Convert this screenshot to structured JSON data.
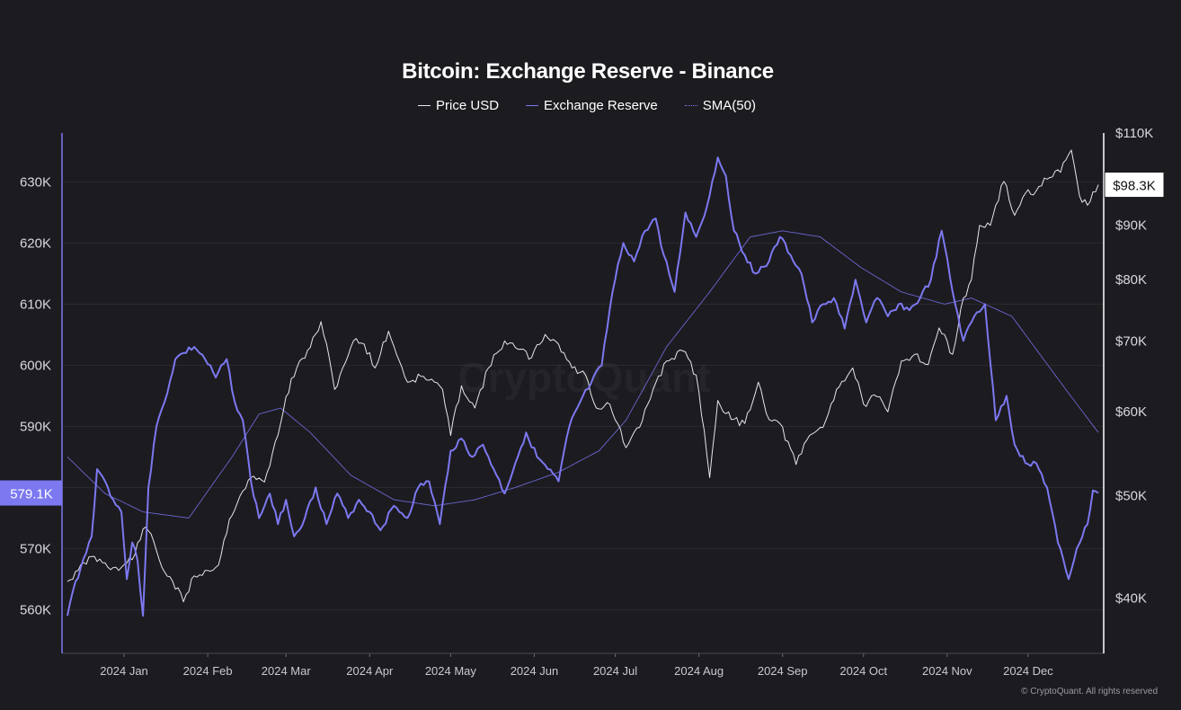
{
  "chart_data": {
    "type": "line",
    "title": "Bitcoin: Exchange Reserve - Binance",
    "watermark": "CryptoQuant",
    "credit": "© CryptoQuant. All rights reserved",
    "x_ticks": [
      "2024 Jan",
      "2024 Feb",
      "2024 Mar",
      "2024 Apr",
      "2024 May",
      "2024 Jun",
      "2024 Jul",
      "2024 Aug",
      "2024 Sep",
      "2024 Oct",
      "2024 Nov",
      "2024 Dec"
    ],
    "x_range": [
      "2023-12-11",
      "2024-12-27"
    ],
    "y_left": {
      "ticks": [
        "560K",
        "570K",
        "580K",
        "590K",
        "600K",
        "610K",
        "620K",
        "630K"
      ],
      "values": [
        560000,
        570000,
        580000,
        590000,
        600000,
        610000,
        620000,
        630000
      ],
      "range": [
        558000,
        638000
      ]
    },
    "y_right": {
      "scale": "log",
      "ticks": [
        "$40K",
        "$50K",
        "$60K",
        "$70K",
        "$80K",
        "$90K",
        "$100K",
        "$110K"
      ],
      "values": [
        40000,
        50000,
        60000,
        70000,
        80000,
        90000,
        100000,
        110000
      ],
      "range": [
        38000,
        110000
      ]
    },
    "current_labels": {
      "reserve": "579.1K",
      "price": "$98.3K"
    },
    "grid": true,
    "legend_position": "top-center",
    "series": [
      {
        "name": "Price USD",
        "axis": "right",
        "color": "#e6e6ea",
        "points": [
          [
            "2023-12-11",
            41500
          ],
          [
            "2023-12-15",
            42500
          ],
          [
            "2023-12-20",
            43800
          ],
          [
            "2023-12-25",
            43200
          ],
          [
            "2023-12-30",
            42500
          ],
          [
            "2024-01-05",
            44000
          ],
          [
            "2024-01-08",
            46500
          ],
          [
            "2024-01-11",
            46000
          ],
          [
            "2024-01-15",
            42800
          ],
          [
            "2024-01-19",
            41500
          ],
          [
            "2024-01-23",
            39700
          ],
          [
            "2024-01-27",
            42000
          ],
          [
            "2024-02-01",
            42500
          ],
          [
            "2024-02-05",
            43000
          ],
          [
            "2024-02-09",
            47500
          ],
          [
            "2024-02-13",
            50000
          ],
          [
            "2024-02-17",
            52000
          ],
          [
            "2024-02-22",
            51500
          ],
          [
            "2024-02-27",
            57000
          ],
          [
            "2024-03-01",
            62000
          ],
          [
            "2024-03-05",
            66000
          ],
          [
            "2024-03-10",
            69000
          ],
          [
            "2024-03-14",
            73000
          ],
          [
            "2024-03-19",
            63000
          ],
          [
            "2024-03-22",
            66000
          ],
          [
            "2024-03-26",
            70000
          ],
          [
            "2024-03-30",
            69500
          ],
          [
            "2024-04-03",
            66000
          ],
          [
            "2024-04-08",
            71500
          ],
          [
            "2024-04-12",
            67000
          ],
          [
            "2024-04-15",
            64000
          ],
          [
            "2024-04-20",
            64800
          ],
          [
            "2024-04-25",
            64000
          ],
          [
            "2024-04-28",
            63000
          ],
          [
            "2024-05-01",
            57000
          ],
          [
            "2024-05-05",
            63500
          ],
          [
            "2024-05-10",
            60500
          ],
          [
            "2024-05-15",
            66000
          ],
          [
            "2024-05-21",
            70000
          ],
          [
            "2024-05-25",
            69000
          ],
          [
            "2024-05-31",
            67500
          ],
          [
            "2024-06-05",
            71000
          ],
          [
            "2024-06-10",
            69500
          ],
          [
            "2024-06-15",
            66000
          ],
          [
            "2024-06-20",
            65000
          ],
          [
            "2024-06-24",
            60500
          ],
          [
            "2024-06-29",
            61000
          ],
          [
            "2024-07-05",
            55500
          ],
          [
            "2024-07-10",
            58000
          ],
          [
            "2024-07-15",
            63000
          ],
          [
            "2024-07-20",
            67000
          ],
          [
            "2024-07-26",
            68500
          ],
          [
            "2024-07-31",
            65000
          ],
          [
            "2024-08-05",
            52000
          ],
          [
            "2024-08-08",
            61500
          ],
          [
            "2024-08-13",
            59000
          ],
          [
            "2024-08-18",
            58500
          ],
          [
            "2024-08-23",
            64000
          ],
          [
            "2024-08-27",
            59000
          ],
          [
            "2024-08-31",
            58500
          ],
          [
            "2024-09-06",
            53500
          ],
          [
            "2024-09-11",
            57000
          ],
          [
            "2024-09-16",
            58000
          ],
          [
            "2024-09-21",
            63000
          ],
          [
            "2024-09-27",
            66000
          ],
          [
            "2024-10-01",
            61000
          ],
          [
            "2024-10-06",
            62000
          ],
          [
            "2024-10-10",
            60000
          ],
          [
            "2024-10-15",
            67000
          ],
          [
            "2024-10-20",
            68000
          ],
          [
            "2024-10-25",
            66500
          ],
          [
            "2024-10-29",
            72000
          ],
          [
            "2024-11-03",
            68000
          ],
          [
            "2024-11-06",
            75000
          ],
          [
            "2024-11-10",
            80000
          ],
          [
            "2024-11-13",
            90000
          ],
          [
            "2024-11-17",
            90000
          ],
          [
            "2024-11-22",
            99000
          ],
          [
            "2024-11-26",
            92000
          ],
          [
            "2024-11-30",
            96500
          ],
          [
            "2024-12-04",
            97000
          ],
          [
            "2024-12-08",
            99500
          ],
          [
            "2024-12-13",
            101000
          ],
          [
            "2024-12-17",
            106000
          ],
          [
            "2024-12-20",
            96000
          ],
          [
            "2024-12-23",
            94000
          ],
          [
            "2024-12-27",
            98300
          ]
        ]
      },
      {
        "name": "Exchange Reserve",
        "axis": "left",
        "color": "#7c78f0",
        "points": [
          [
            "2023-12-11",
            559000
          ],
          [
            "2023-12-13",
            563000
          ],
          [
            "2023-12-16",
            567000
          ],
          [
            "2023-12-20",
            572000
          ],
          [
            "2023-12-22",
            583000
          ],
          [
            "2023-12-25",
            581000
          ],
          [
            "2023-12-28",
            578000
          ],
          [
            "2023-12-31",
            576000
          ],
          [
            "2024-01-02",
            565000
          ],
          [
            "2024-01-04",
            571000
          ],
          [
            "2024-01-06",
            568000
          ],
          [
            "2024-01-08",
            559000
          ],
          [
            "2024-01-10",
            580000
          ],
          [
            "2024-01-13",
            590000
          ],
          [
            "2024-01-16",
            594000
          ],
          [
            "2024-01-20",
            601000
          ],
          [
            "2024-01-23",
            602000
          ],
          [
            "2024-01-27",
            603000
          ],
          [
            "2024-01-31",
            601000
          ],
          [
            "2024-02-04",
            598000
          ],
          [
            "2024-02-08",
            601000
          ],
          [
            "2024-02-11",
            594000
          ],
          [
            "2024-02-14",
            591000
          ],
          [
            "2024-02-17",
            581000
          ],
          [
            "2024-02-20",
            575000
          ],
          [
            "2024-02-24",
            579000
          ],
          [
            "2024-02-27",
            574000
          ],
          [
            "2024-03-01",
            578000
          ],
          [
            "2024-03-04",
            572000
          ],
          [
            "2024-03-08",
            575000
          ],
          [
            "2024-03-12",
            580000
          ],
          [
            "2024-03-16",
            574000
          ],
          [
            "2024-03-20",
            579000
          ],
          [
            "2024-03-24",
            575000
          ],
          [
            "2024-03-28",
            578000
          ],
          [
            "2024-04-01",
            576000
          ],
          [
            "2024-04-05",
            573000
          ],
          [
            "2024-04-10",
            577000
          ],
          [
            "2024-04-15",
            575000
          ],
          [
            "2024-04-19",
            580000
          ],
          [
            "2024-04-23",
            581000
          ],
          [
            "2024-04-27",
            574000
          ],
          [
            "2024-05-01",
            586000
          ],
          [
            "2024-05-05",
            588000
          ],
          [
            "2024-05-09",
            585000
          ],
          [
            "2024-05-13",
            587000
          ],
          [
            "2024-05-17",
            583000
          ],
          [
            "2024-05-21",
            579000
          ],
          [
            "2024-05-25",
            584000
          ],
          [
            "2024-05-29",
            589000
          ],
          [
            "2024-06-02",
            585000
          ],
          [
            "2024-06-06",
            583000
          ],
          [
            "2024-06-10",
            581000
          ],
          [
            "2024-06-14",
            590000
          ],
          [
            "2024-06-18",
            594000
          ],
          [
            "2024-06-22",
            597000
          ],
          [
            "2024-06-26",
            600000
          ],
          [
            "2024-06-30",
            612000
          ],
          [
            "2024-07-04",
            620000
          ],
          [
            "2024-07-08",
            617000
          ],
          [
            "2024-07-12",
            622000
          ],
          [
            "2024-07-16",
            624000
          ],
          [
            "2024-07-19",
            618000
          ],
          [
            "2024-07-23",
            612000
          ],
          [
            "2024-07-27",
            625000
          ],
          [
            "2024-07-31",
            621000
          ],
          [
            "2024-08-04",
            626000
          ],
          [
            "2024-08-08",
            634000
          ],
          [
            "2024-08-11",
            631000
          ],
          [
            "2024-08-14",
            622000
          ],
          [
            "2024-08-18",
            618000
          ],
          [
            "2024-08-22",
            615000
          ],
          [
            "2024-08-27",
            617000
          ],
          [
            "2024-08-31",
            621000
          ],
          [
            "2024-09-04",
            618000
          ],
          [
            "2024-09-08",
            615000
          ],
          [
            "2024-09-12",
            607000
          ],
          [
            "2024-09-16",
            610000
          ],
          [
            "2024-09-20",
            611000
          ],
          [
            "2024-09-24",
            606000
          ],
          [
            "2024-09-28",
            614000
          ],
          [
            "2024-10-02",
            607000
          ],
          [
            "2024-10-06",
            611000
          ],
          [
            "2024-10-10",
            608000
          ],
          [
            "2024-10-14",
            610000
          ],
          [
            "2024-10-18",
            609000
          ],
          [
            "2024-10-22",
            611000
          ],
          [
            "2024-10-26",
            614000
          ],
          [
            "2024-10-30",
            622000
          ],
          [
            "2024-11-03",
            612000
          ],
          [
            "2024-11-07",
            604000
          ],
          [
            "2024-11-11",
            608000
          ],
          [
            "2024-11-15",
            610000
          ],
          [
            "2024-11-19",
            591000
          ],
          [
            "2024-11-23",
            595000
          ],
          [
            "2024-11-26",
            587000
          ],
          [
            "2024-11-30",
            584000
          ],
          [
            "2024-12-04",
            584000
          ],
          [
            "2024-12-08",
            580000
          ],
          [
            "2024-12-12",
            571000
          ],
          [
            "2024-12-16",
            565000
          ],
          [
            "2024-12-19",
            570000
          ],
          [
            "2024-12-23",
            574000
          ],
          [
            "2024-12-25",
            579500
          ],
          [
            "2024-12-27",
            579100
          ]
        ]
      },
      {
        "name": "SMA(50)",
        "axis": "left",
        "color": "#6f6ad8",
        "style": "thin",
        "points": [
          [
            "2023-12-11",
            585000
          ],
          [
            "2023-12-25",
            579000
          ],
          [
            "2024-01-08",
            576000
          ],
          [
            "2024-01-25",
            575000
          ],
          [
            "2024-02-10",
            585000
          ],
          [
            "2024-02-20",
            592000
          ],
          [
            "2024-02-28",
            593000
          ],
          [
            "2024-03-10",
            589000
          ],
          [
            "2024-03-25",
            582000
          ],
          [
            "2024-04-10",
            578000
          ],
          [
            "2024-04-25",
            577000
          ],
          [
            "2024-05-10",
            578000
          ],
          [
            "2024-05-25",
            580000
          ],
          [
            "2024-06-10",
            582500
          ],
          [
            "2024-06-25",
            586000
          ],
          [
            "2024-07-05",
            591000
          ],
          [
            "2024-07-20",
            603000
          ],
          [
            "2024-08-05",
            612000
          ],
          [
            "2024-08-20",
            621000
          ],
          [
            "2024-09-01",
            622000
          ],
          [
            "2024-09-15",
            621000
          ],
          [
            "2024-09-30",
            616000
          ],
          [
            "2024-10-15",
            612000
          ],
          [
            "2024-10-31",
            610000
          ],
          [
            "2024-11-10",
            611000
          ],
          [
            "2024-11-25",
            608000
          ],
          [
            "2024-12-05",
            602000
          ],
          [
            "2024-12-15",
            596000
          ],
          [
            "2024-12-27",
            589000
          ]
        ]
      }
    ]
  }
}
